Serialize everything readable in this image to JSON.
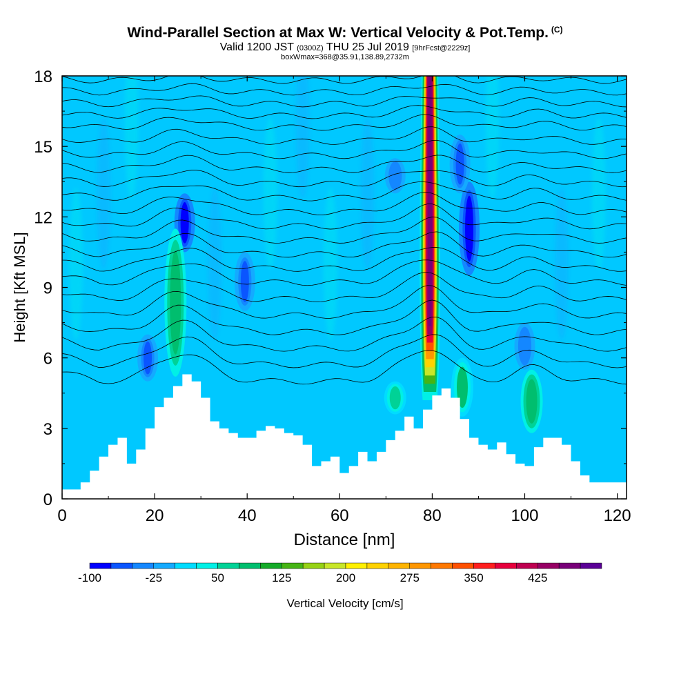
{
  "chart_data": {
    "type": "heatmap",
    "title": "Wind-Parallel Section at Max W: Vertical Velocity & Pot.Temp.",
    "title_mark": "(C)",
    "subtitle_parts": [
      "Valid 1200 JST",
      "(0300Z)",
      "THU 25 Jul 2019",
      "[9hrFcst@2229z]"
    ],
    "subtitle2": "boxWmax=368@35.91,138.89,2732m",
    "xlabel": "Distance [nm]",
    "ylabel": "Height [Kft MSL]",
    "xlim": [
      0,
      122
    ],
    "ylim": [
      0,
      18
    ],
    "x_ticks": [
      "0",
      "20",
      "40",
      "60",
      "80",
      "100",
      "120"
    ],
    "y_ticks": [
      "0",
      "3",
      "6",
      "9",
      "12",
      "15",
      "18"
    ],
    "terrain": {
      "x": [
        0,
        4,
        6,
        8,
        10,
        12,
        14,
        16,
        18,
        20,
        22,
        24,
        26,
        28,
        30,
        32,
        34,
        36,
        38,
        40,
        42,
        44,
        46,
        48,
        50,
        52,
        54,
        56,
        58,
        60,
        62,
        64,
        66,
        68,
        70,
        72,
        74,
        76,
        78,
        80,
        82,
        84,
        86,
        88,
        90,
        92,
        94,
        96,
        98,
        100,
        102,
        104,
        106,
        108,
        110,
        112,
        114,
        116,
        118,
        120,
        122
      ],
      "height_kft": [
        0.4,
        0.7,
        1.2,
        1.8,
        2.3,
        2.6,
        1.5,
        2.1,
        3.0,
        3.9,
        4.3,
        4.8,
        5.3,
        5.0,
        4.3,
        3.3,
        3.0,
        2.8,
        2.6,
        2.6,
        2.9,
        3.1,
        3.0,
        2.8,
        2.7,
        2.3,
        1.4,
        1.6,
        1.8,
        1.1,
        1.4,
        2.0,
        1.6,
        2.0,
        2.5,
        2.9,
        3.5,
        3.0,
        3.8,
        4.4,
        4.7,
        4.3,
        3.4,
        2.6,
        2.3,
        2.1,
        2.4,
        1.9,
        1.5,
        1.4,
        2.2,
        2.6,
        2.6,
        2.3,
        1.6,
        1.0,
        0.7,
        0.7,
        0.7,
        0.7,
        0.7
      ]
    },
    "updrafts": [
      {
        "x": 79.5,
        "base_kft": 4.2,
        "top_kft": 18,
        "max_cm_s": 460
      },
      {
        "x": 24.5,
        "base_kft": 5.2,
        "top_kft": 11.5,
        "max_cm_s": 90
      },
      {
        "x": 101.5,
        "base_kft": 2.8,
        "top_kft": 5.5,
        "max_cm_s": 85
      },
      {
        "x": 86.5,
        "base_kft": 3.5,
        "top_kft": 6.0,
        "max_cm_s": 75
      },
      {
        "x": 72,
        "base_kft": 3.6,
        "top_kft": 5.0,
        "max_cm_s": 70
      }
    ],
    "downdrafts": [
      {
        "x": 26.5,
        "base_kft": 10.5,
        "top_kft": 13.0,
        "min_cm_s": -90
      },
      {
        "x": 88,
        "base_kft": 9.5,
        "top_kft": 13.5,
        "min_cm_s": -100
      },
      {
        "x": 86,
        "base_kft": 13.0,
        "top_kft": 15.5,
        "min_cm_s": -60
      },
      {
        "x": 72,
        "base_kft": 13.0,
        "top_kft": 14.5,
        "min_cm_s": -50
      },
      {
        "x": 39.5,
        "base_kft": 8.0,
        "top_kft": 10.5,
        "min_cm_s": -60
      },
      {
        "x": 18.5,
        "base_kft": 5.0,
        "top_kft": 7.0,
        "min_cm_s": -60
      },
      {
        "x": 100,
        "base_kft": 5.5,
        "top_kft": 7.5,
        "min_cm_s": -50
      }
    ],
    "isentropes": {
      "heights_kft": [
        5.0,
        5.7,
        6.4,
        7.1,
        7.8,
        8.5,
        9.2,
        9.8,
        10.4,
        11.0,
        11.6,
        12.2,
        12.8,
        13.4,
        14.0,
        14.6,
        15.2,
        15.8,
        16.3,
        16.8,
        17.3,
        17.8
      ]
    },
    "colorbar": {
      "title": "Vertical Velocity [cm/s]",
      "tick_labels": [
        "-100",
        "-25",
        "50",
        "125",
        "200",
        "275",
        "350",
        "425"
      ],
      "levels": [
        -100,
        -75,
        -50,
        -25,
        0,
        25,
        50,
        75,
        100,
        125,
        150,
        175,
        200,
        225,
        250,
        275,
        300,
        325,
        350,
        375,
        400,
        425,
        450,
        475
      ],
      "colors": [
        "#0000ff",
        "#0a55ff",
        "#1487ff",
        "#14aaff",
        "#00dcff",
        "#00f0e6",
        "#00d296",
        "#00be6e",
        "#14aa28",
        "#46b414",
        "#96d214",
        "#c8e628",
        "#fff000",
        "#ffd200",
        "#ffb400",
        "#ff9600",
        "#ff7800",
        "#ff5000",
        "#ff1e1e",
        "#e6003c",
        "#be0050",
        "#960064",
        "#780078",
        "#5a0096"
      ]
    },
    "background_color": "#00c8ff",
    "grid": false
  }
}
